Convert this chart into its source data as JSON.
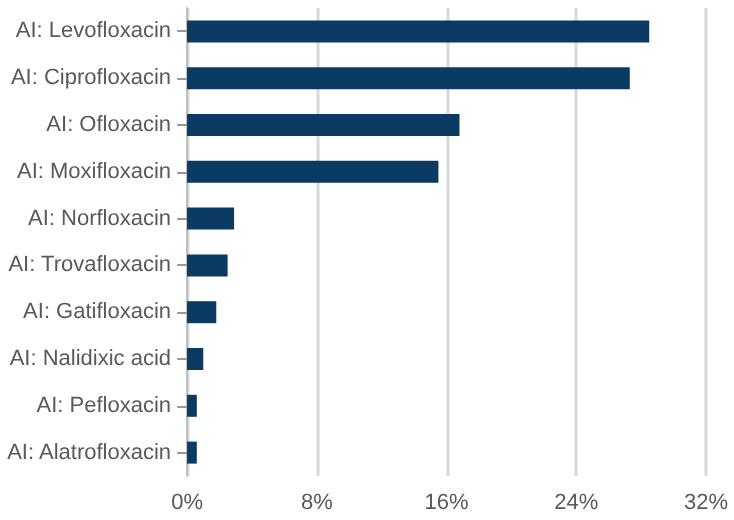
{
  "chart_data": {
    "type": "bar",
    "orientation": "horizontal",
    "categories": [
      "AI: Levofloxacin",
      "AI: Ciprofloxacin",
      "AI: Ofloxacin",
      "AI: Moxifloxacin",
      "AI: Norfloxacin",
      "AI: Trovafloxacin",
      "AI: Gatifloxacin",
      "AI: Nalidixic acid",
      "AI: Pefloxacin",
      "AI: Alatrofloxacin"
    ],
    "values": [
      28.5,
      27.3,
      16.8,
      15.5,
      2.9,
      2.5,
      1.8,
      1.0,
      0.6,
      0.6
    ],
    "color": "#0b3a63",
    "xlim": [
      0,
      32
    ],
    "xticks": [
      {
        "value": 0,
        "label": "0%"
      },
      {
        "value": 8,
        "label": "8%"
      },
      {
        "value": 16,
        "label": "16%"
      },
      {
        "value": 24,
        "label": "24%"
      },
      {
        "value": 32,
        "label": "32%"
      }
    ],
    "grid": "x"
  }
}
